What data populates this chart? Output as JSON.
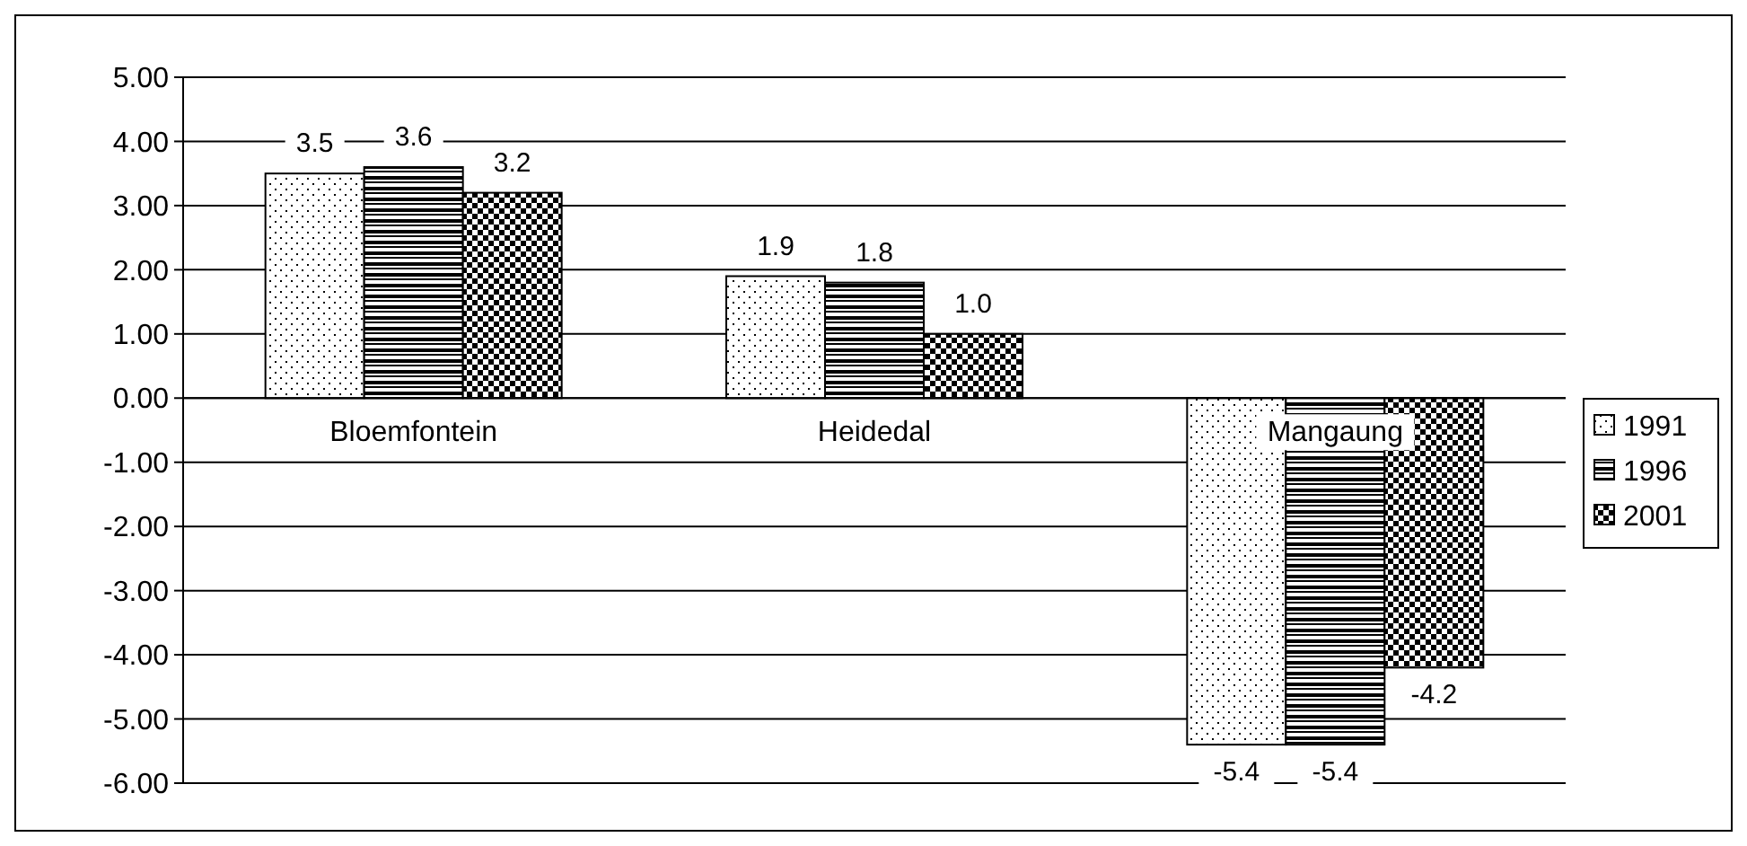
{
  "chart_data": {
    "type": "bar",
    "categories": [
      "Bloemfontein",
      "Heidedal",
      "Mangaung"
    ],
    "series": [
      {
        "name": "1991",
        "color": "#000000",
        "values": [
          3.5,
          1.9,
          -5.4
        ],
        "value_labels": [
          "3.5",
          "1.9",
          "-5.4"
        ]
      },
      {
        "name": "1996",
        "color": "#000000",
        "values": [
          3.6,
          1.8,
          -5.4
        ],
        "value_labels": [
          "3.6",
          "1.8",
          "-5.4"
        ]
      },
      {
        "name": "2001",
        "color": "#000000",
        "values": [
          3.2,
          1.0,
          -4.2
        ],
        "value_labels": [
          "3.2",
          "1.0",
          "-4.2"
        ]
      }
    ],
    "ylim": [
      -6,
      5
    ],
    "yticks": [
      {
        "value": -6,
        "label": "-6.00"
      },
      {
        "value": -5,
        "label": "-5.00"
      },
      {
        "value": -4,
        "label": "-4.00"
      },
      {
        "value": -3,
        "label": "-3.00"
      },
      {
        "value": -2,
        "label": "-2.00"
      },
      {
        "value": -1,
        "label": "-1.00"
      },
      {
        "value": 0,
        "label": "0.00"
      },
      {
        "value": 1,
        "label": "1.00"
      },
      {
        "value": 2,
        "label": "2.00"
      },
      {
        "value": 3,
        "label": "3.00"
      },
      {
        "value": 4,
        "label": "4.00"
      },
      {
        "value": 5,
        "label": "5.00"
      }
    ],
    "grid": "y",
    "legend": "right"
  }
}
